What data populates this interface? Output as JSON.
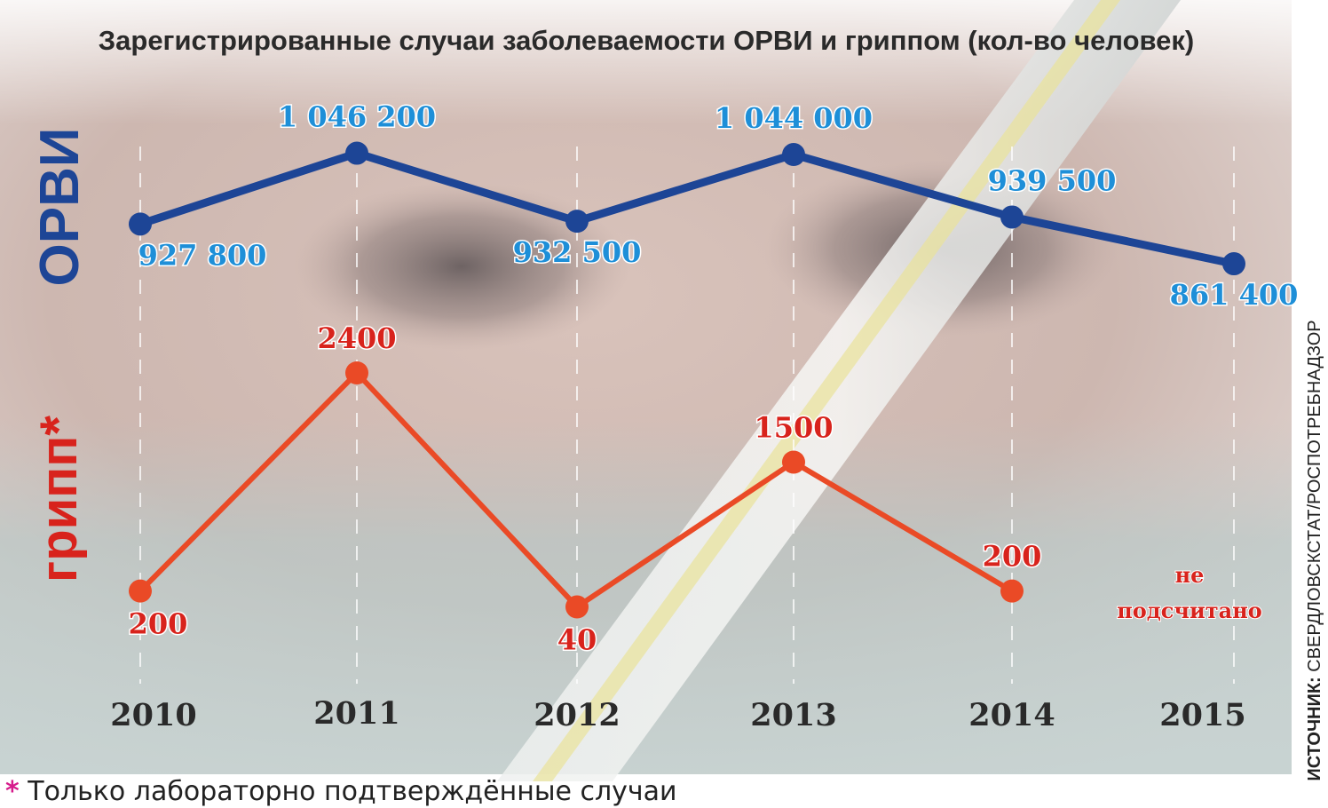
{
  "chart_data": {
    "type": "line",
    "title": "Зарегистрированные случаи заболеваемости ОРВИ и гриппом (кол-во человек)",
    "categories": [
      "2010",
      "2011",
      "2012",
      "2013",
      "2014",
      "2015"
    ],
    "series": [
      {
        "name": "ОРВИ",
        "values": [
          927800,
          1046200,
          932500,
          1044000,
          939500,
          861400
        ],
        "labels": [
          "927 800",
          "1 046 200",
          "932 500",
          "1 044 000",
          "939 500",
          "861 400"
        ],
        "color": "#1d4596",
        "label_color": "#1e8fd8"
      },
      {
        "name": "грипп*",
        "values": [
          200,
          2400,
          40,
          1500,
          200,
          null
        ],
        "labels": [
          "200",
          "2400",
          "40",
          "1500",
          "200",
          ""
        ],
        "color": "#ea4a26",
        "label_color": "#d8231c"
      }
    ],
    "annotations": {
      "gripp_2015_line1": "не",
      "gripp_2015_line2": "подсчитано"
    },
    "grid": true
  },
  "source": {
    "prefix": "ИСТОЧНИК: ",
    "text": "СВЕРДЛОВСКСТАТ/РОСПОТРЕБНАДЗОР"
  },
  "footnote": {
    "star": "*",
    "text": " Только лабораторно подтверждённые случаи"
  },
  "colors": {
    "orvi_line": "#1d4596",
    "orvi_label": "#1e8fd8",
    "gripp_line": "#ea4a26",
    "gripp_label": "#d8231c",
    "footnote_star": "#d61c8c"
  }
}
